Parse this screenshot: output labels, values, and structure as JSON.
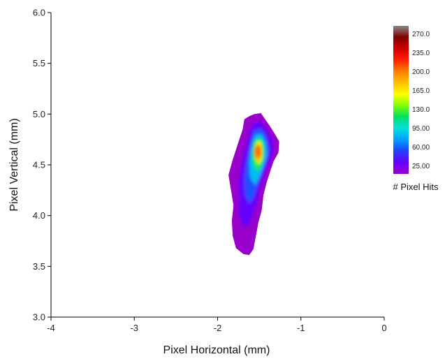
{
  "chart_data": {
    "type": "heatmap",
    "subtype": "filled-contour",
    "xlabel": "Pixel Horizontal (mm)",
    "ylabel": "Pixel Vertical (mm)",
    "xlim": [
      -4,
      0
    ],
    "ylim": [
      3.0,
      6.0
    ],
    "x_ticks": [
      -4,
      -3,
      -2,
      -1,
      0
    ],
    "x_tick_labels": [
      "-4",
      "-3",
      "-2",
      "-1",
      "0"
    ],
    "y_ticks": [
      3.0,
      3.5,
      4.0,
      4.5,
      5.0,
      5.5,
      6.0
    ],
    "y_tick_labels": [
      "3.0",
      "3.5",
      "4.0",
      "4.5",
      "5.0",
      "5.5",
      "6.0"
    ],
    "grid": false,
    "colorbar": {
      "title": "# Pixel Hits",
      "range": [
        10,
        285
      ],
      "tick_values": [
        270,
        235,
        200,
        165,
        130,
        95,
        60,
        25
      ],
      "tick_labels": [
        "270.0",
        "235.0",
        "200.0",
        "165.0",
        "130.0",
        "95.00",
        "60.00",
        "25.00"
      ],
      "colors": [
        "#9900cc",
        "#6a00ff",
        "#2040ff",
        "#00a0ff",
        "#00e0e0",
        "#00e060",
        "#80ff00",
        "#ffff00",
        "#ffc000",
        "#ff8000",
        "#ff2000",
        "#d00000",
        "#800000",
        "#888888"
      ]
    },
    "peak": {
      "x": -1.52,
      "y": 4.63,
      "value": 225
    },
    "contours": [
      {
        "level": 10,
        "points": [
          [
            -1.62,
            4.98
          ],
          [
            -1.56,
            5.0
          ],
          [
            -1.48,
            5.01
          ],
          [
            -1.43,
            4.95
          ],
          [
            -1.37,
            4.88
          ],
          [
            -1.31,
            4.8
          ],
          [
            -1.26,
            4.73
          ],
          [
            -1.27,
            4.62
          ],
          [
            -1.33,
            4.53
          ],
          [
            -1.37,
            4.43
          ],
          [
            -1.41,
            4.33
          ],
          [
            -1.45,
            4.2
          ],
          [
            -1.47,
            4.05
          ],
          [
            -1.51,
            3.93
          ],
          [
            -1.54,
            3.8
          ],
          [
            -1.57,
            3.67
          ],
          [
            -1.62,
            3.61
          ],
          [
            -1.69,
            3.62
          ],
          [
            -1.78,
            3.68
          ],
          [
            -1.82,
            3.8
          ],
          [
            -1.83,
            3.95
          ],
          [
            -1.81,
            4.1
          ],
          [
            -1.84,
            4.25
          ],
          [
            -1.87,
            4.4
          ],
          [
            -1.82,
            4.55
          ],
          [
            -1.76,
            4.7
          ],
          [
            -1.7,
            4.85
          ],
          [
            -1.68,
            4.95
          ]
        ]
      },
      {
        "level": 35,
        "points": [
          [
            -1.58,
            4.9
          ],
          [
            -1.49,
            4.93
          ],
          [
            -1.42,
            4.86
          ],
          [
            -1.35,
            4.76
          ],
          [
            -1.33,
            4.64
          ],
          [
            -1.38,
            4.52
          ],
          [
            -1.44,
            4.4
          ],
          [
            -1.49,
            4.28
          ],
          [
            -1.53,
            4.13
          ],
          [
            -1.58,
            4.0
          ],
          [
            -1.63,
            3.9
          ],
          [
            -1.7,
            3.9
          ],
          [
            -1.74,
            4.02
          ],
          [
            -1.74,
            4.18
          ],
          [
            -1.75,
            4.33
          ],
          [
            -1.72,
            4.48
          ],
          [
            -1.68,
            4.63
          ],
          [
            -1.63,
            4.78
          ]
        ]
      },
      {
        "level": 60,
        "points": [
          [
            -1.56,
            4.84
          ],
          [
            -1.48,
            4.86
          ],
          [
            -1.42,
            4.78
          ],
          [
            -1.38,
            4.65
          ],
          [
            -1.42,
            4.53
          ],
          [
            -1.47,
            4.42
          ],
          [
            -1.52,
            4.3
          ],
          [
            -1.57,
            4.18
          ],
          [
            -1.62,
            4.12
          ],
          [
            -1.67,
            4.2
          ],
          [
            -1.68,
            4.35
          ],
          [
            -1.66,
            4.5
          ],
          [
            -1.62,
            4.65
          ],
          [
            -1.59,
            4.77
          ]
        ]
      },
      {
        "level": 90,
        "points": [
          [
            -1.54,
            4.8
          ],
          [
            -1.47,
            4.8
          ],
          [
            -1.42,
            4.71
          ],
          [
            -1.41,
            4.6
          ],
          [
            -1.45,
            4.49
          ],
          [
            -1.5,
            4.38
          ],
          [
            -1.55,
            4.3
          ],
          [
            -1.61,
            4.38
          ],
          [
            -1.62,
            4.52
          ],
          [
            -1.6,
            4.65
          ],
          [
            -1.57,
            4.75
          ]
        ]
      },
      {
        "level": 130,
        "points": [
          [
            -1.53,
            4.76
          ],
          [
            -1.47,
            4.76
          ],
          [
            -1.44,
            4.67
          ],
          [
            -1.45,
            4.55
          ],
          [
            -1.49,
            4.46
          ],
          [
            -1.54,
            4.44
          ],
          [
            -1.58,
            4.53
          ],
          [
            -1.58,
            4.64
          ],
          [
            -1.56,
            4.72
          ]
        ]
      },
      {
        "level": 165,
        "points": [
          [
            -1.53,
            4.73
          ],
          [
            -1.48,
            4.73
          ],
          [
            -1.46,
            4.64
          ],
          [
            -1.47,
            4.55
          ],
          [
            -1.51,
            4.5
          ],
          [
            -1.55,
            4.56
          ],
          [
            -1.56,
            4.65
          ]
        ]
      },
      {
        "level": 200,
        "points": [
          [
            -1.52,
            4.7
          ],
          [
            -1.48,
            4.69
          ],
          [
            -1.47,
            4.62
          ],
          [
            -1.49,
            4.55
          ],
          [
            -1.52,
            4.53
          ],
          [
            -1.55,
            4.6
          ],
          [
            -1.54,
            4.67
          ]
        ]
      }
    ]
  }
}
